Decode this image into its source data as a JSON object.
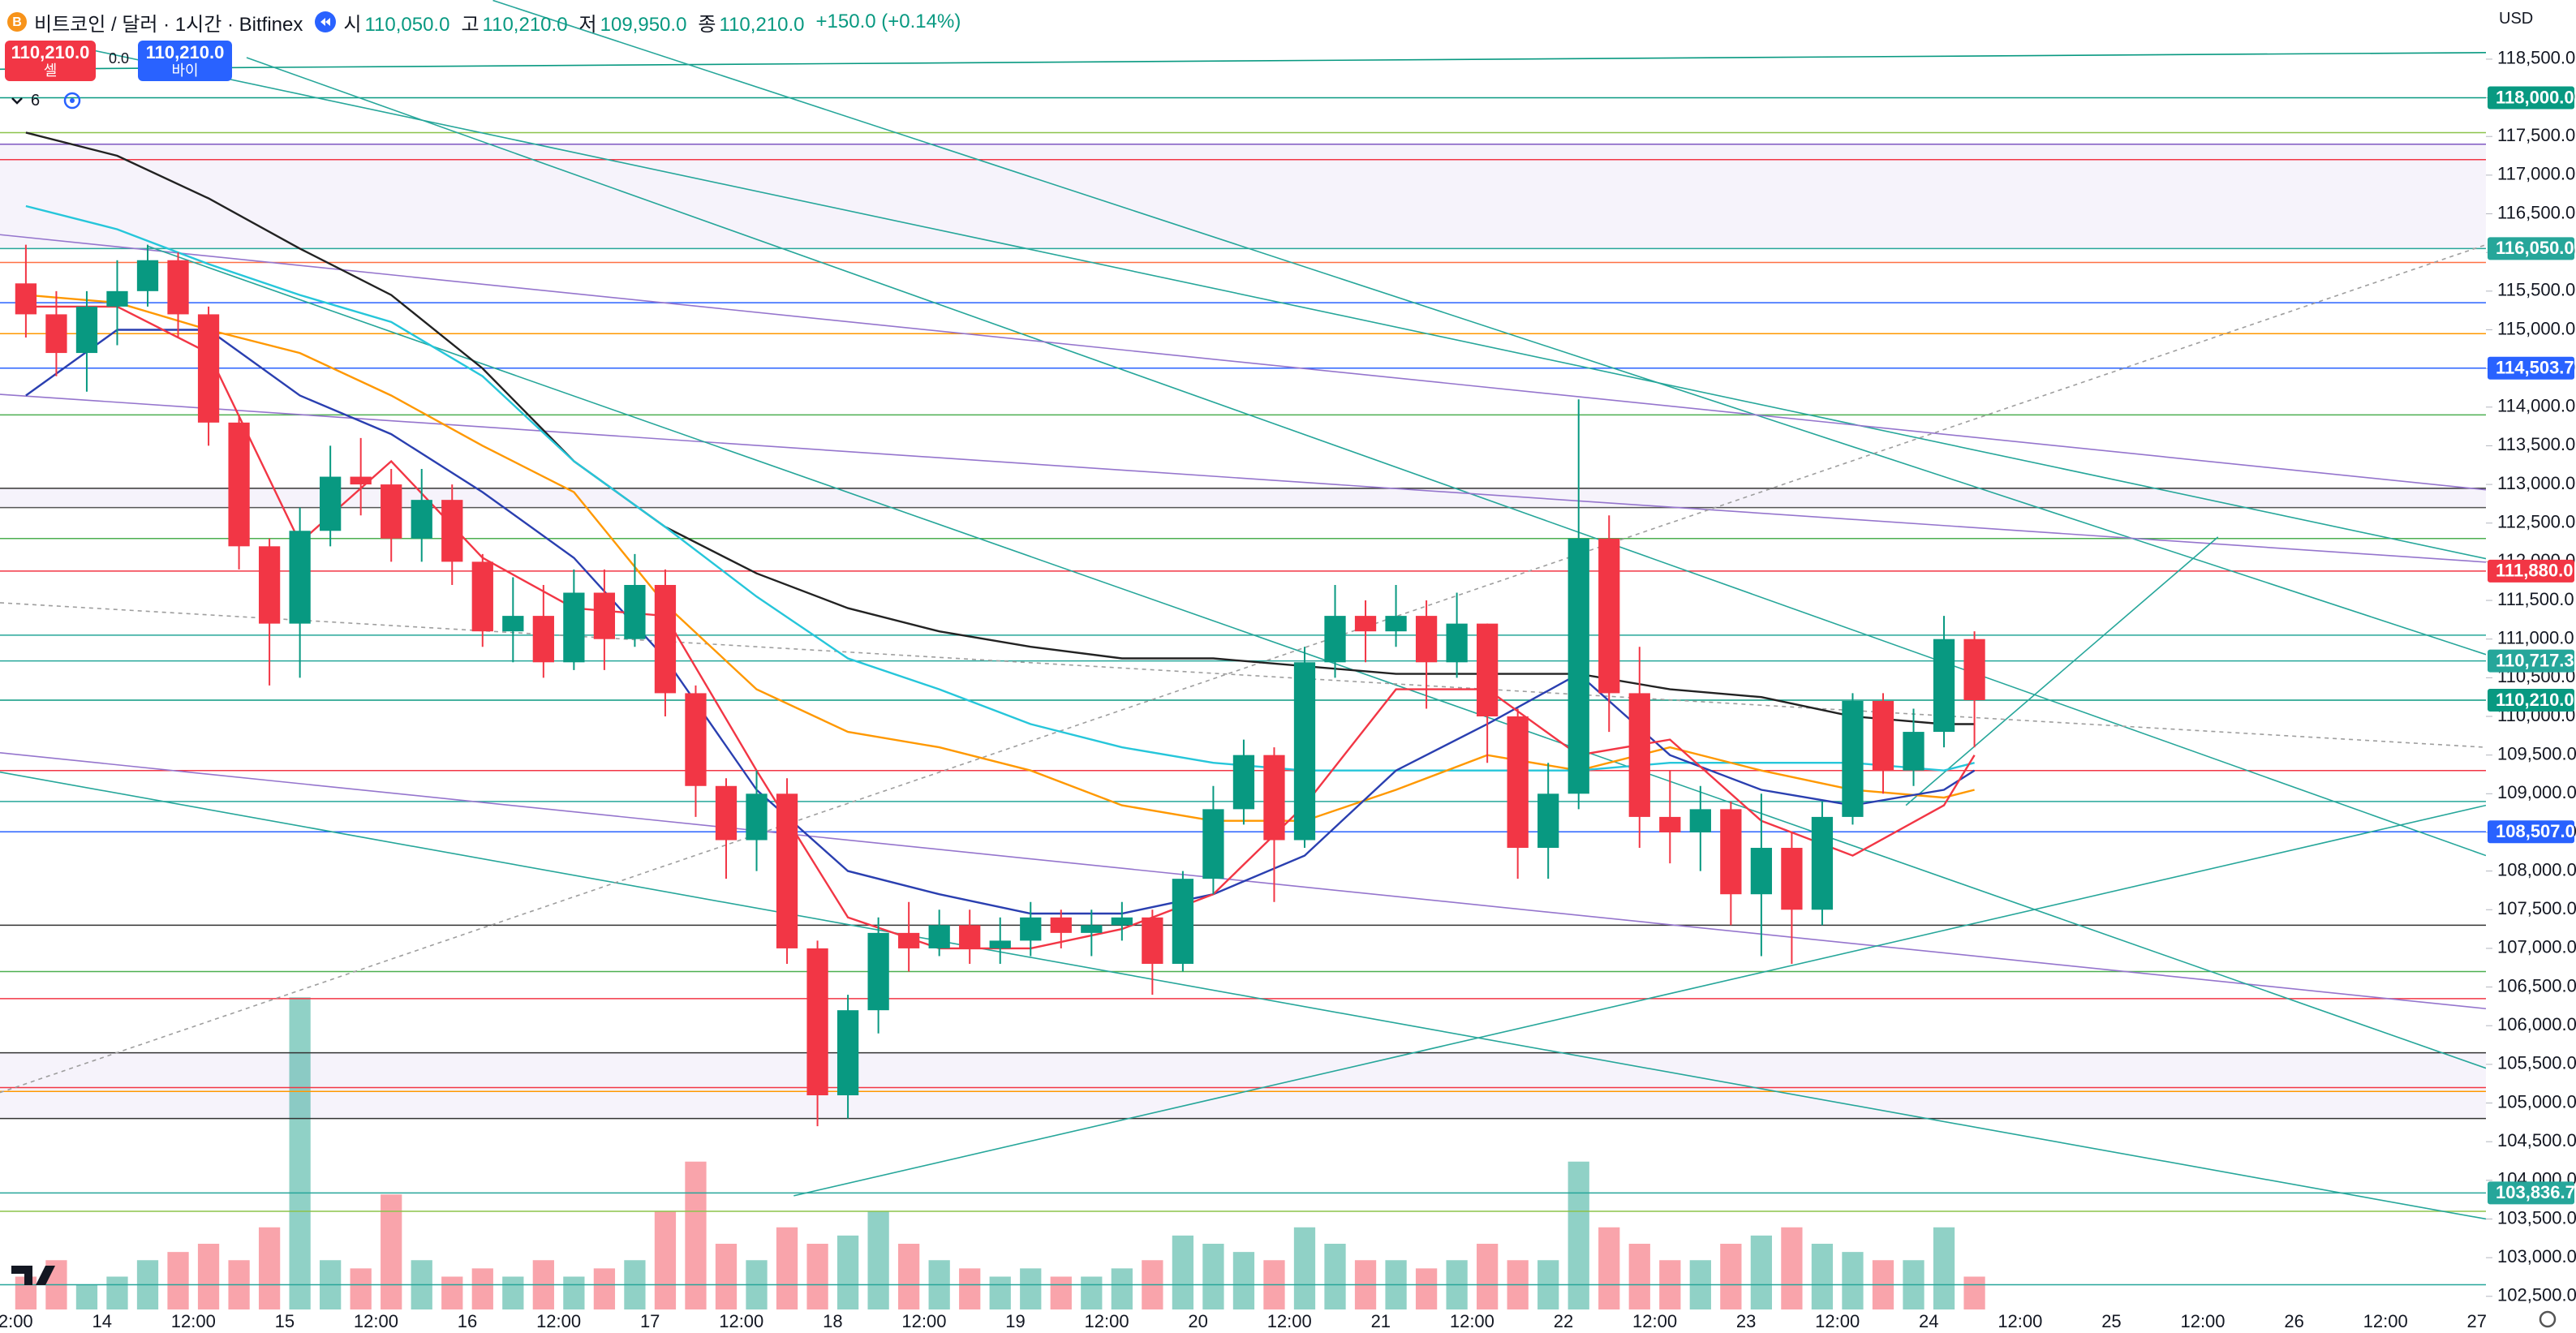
{
  "header": {
    "symbol": "비트코인 / 달러 · 1시간 · Bitfinex",
    "ohlc": [
      {
        "label": "시",
        "value": "110,050.0"
      },
      {
        "label": "고",
        "value": "110,210.0"
      },
      {
        "label": "저",
        "value": "109,950.0"
      },
      {
        "label": "종",
        "value": "110,210.0"
      }
    ],
    "change": "+150.0 (+0.14%)",
    "sell": {
      "price": "110,210.0",
      "label": "셀"
    },
    "spread": "0.0",
    "buy": {
      "price": "110,210.0",
      "label": "바이"
    },
    "indicators": "6",
    "currency": "USD"
  },
  "chart_data": {
    "type": "candlestick",
    "xlim": [
      -0.35,
      81.3
    ],
    "ylim": [
      102330,
      119265
    ],
    "xticks": [
      {
        "value": 0,
        "label": "12:00"
      },
      {
        "value": 3,
        "label": "14"
      },
      {
        "value": 6,
        "label": "12:00"
      },
      {
        "value": 9,
        "label": "15"
      },
      {
        "value": 12,
        "label": "12:00"
      },
      {
        "value": 15,
        "label": "16"
      },
      {
        "value": 18,
        "label": "12:00"
      },
      {
        "value": 21,
        "label": "17"
      },
      {
        "value": 24,
        "label": "12:00"
      },
      {
        "value": 27,
        "label": "18"
      },
      {
        "value": 30,
        "label": "12:00"
      },
      {
        "value": 33,
        "label": "19"
      },
      {
        "value": 36,
        "label": "12:00"
      },
      {
        "value": 39,
        "label": "20"
      },
      {
        "value": 42,
        "label": "12:00"
      },
      {
        "value": 45,
        "label": "21"
      },
      {
        "value": 48,
        "label": "12:00"
      },
      {
        "value": 51,
        "label": "22"
      },
      {
        "value": 54,
        "label": "12:00"
      },
      {
        "value": 57,
        "label": "23"
      },
      {
        "value": 60,
        "label": "12:00"
      },
      {
        "value": 63,
        "label": "24"
      },
      {
        "value": 66,
        "label": "12:00"
      },
      {
        "value": 69,
        "label": "25"
      },
      {
        "value": 72,
        "label": "12:00"
      },
      {
        "value": 75,
        "label": "26"
      },
      {
        "value": 78,
        "label": "12:00"
      },
      {
        "value": 81,
        "label": "27"
      }
    ],
    "yticks": [
      {
        "value": 102500,
        "label": "102,500.0"
      },
      {
        "value": 103000,
        "label": "103,000.0"
      },
      {
        "value": 103500,
        "label": "103,500.0"
      },
      {
        "value": 104000,
        "label": "104,000.0"
      },
      {
        "value": 104500,
        "label": "104,500.0"
      },
      {
        "value": 105000,
        "label": "105,000.0"
      },
      {
        "value": 105500,
        "label": "105,500.0"
      },
      {
        "value": 106000,
        "label": "106,000.0"
      },
      {
        "value": 106500,
        "label": "106,500.0"
      },
      {
        "value": 107000,
        "label": "107,000.0"
      },
      {
        "value": 107500,
        "label": "107,500.0"
      },
      {
        "value": 108000,
        "label": "108,000.0"
      },
      {
        "value": 108500,
        "label": "108,500.0"
      },
      {
        "value": 109000,
        "label": "109,000.0"
      },
      {
        "value": 109500,
        "label": "109,500.0"
      },
      {
        "value": 110000,
        "label": "110,000.0"
      },
      {
        "value": 110500,
        "label": "110,500.0"
      },
      {
        "value": 111000,
        "label": "111,000.0"
      },
      {
        "value": 111500,
        "label": "111,500.0"
      },
      {
        "value": 112000,
        "label": "112,000.0"
      },
      {
        "value": 112500,
        "label": "112,500.0"
      },
      {
        "value": 113000,
        "label": "113,000.0"
      },
      {
        "value": 113500,
        "label": "113,500.0"
      },
      {
        "value": 114000,
        "label": "114,000.0"
      },
      {
        "value": 114500,
        "label": "114,500.0"
      },
      {
        "value": 115000,
        "label": "115,000.0"
      },
      {
        "value": 115500,
        "label": "115,500.0"
      },
      {
        "value": 116000,
        "label": "116,000.0"
      },
      {
        "value": 116500,
        "label": "116,500.0"
      },
      {
        "value": 117000,
        "label": "117,000.0"
      },
      {
        "value": 117500,
        "label": "117,500.0"
      },
      {
        "value": 118000,
        "label": "118,000.0"
      },
      {
        "value": 118500,
        "label": "118,500.0"
      }
    ],
    "up_color": "#089981",
    "down_color": "#f23645",
    "candles": {
      "open": [
        115600,
        115200,
        114700,
        115300,
        115500,
        115900,
        115200,
        113800,
        112200,
        111200,
        112400,
        113100,
        113000,
        112300,
        112800,
        112000,
        111100,
        111300,
        110700,
        111600,
        111000,
        111700,
        110300,
        109100,
        108400,
        109000,
        107000,
        105100,
        106200,
        107200,
        107000,
        107300,
        107000,
        107100,
        107400,
        107200,
        107300,
        107400,
        106800,
        107900,
        108800,
        109500,
        108400,
        110700,
        111300,
        111100,
        111300,
        110700,
        111200,
        110000,
        108300,
        109000,
        112300,
        110300,
        108700,
        108500,
        108800,
        107700,
        108300,
        107500,
        108700,
        110200,
        109300,
        109800,
        111000
      ],
      "high": [
        116100,
        115500,
        115500,
        115900,
        116100,
        116000,
        115300,
        113900,
        112300,
        112700,
        113500,
        113600,
        113200,
        113200,
        113000,
        112100,
        111800,
        111700,
        111900,
        111900,
        112100,
        111900,
        110400,
        109200,
        109300,
        109200,
        107100,
        106400,
        107400,
        107600,
        107500,
        107500,
        107400,
        107600,
        107500,
        107500,
        107600,
        107500,
        108000,
        109100,
        109700,
        109600,
        110900,
        111700,
        111500,
        111700,
        111500,
        111600,
        111200,
        110100,
        109400,
        114100,
        112600,
        110900,
        109300,
        109100,
        108900,
        109000,
        108500,
        108900,
        110300,
        110300,
        110100,
        111300,
        111100
      ],
      "low": [
        114900,
        114400,
        114200,
        114800,
        115300,
        114900,
        113500,
        111900,
        110400,
        110500,
        112200,
        112600,
        112000,
        112000,
        111700,
        110900,
        110700,
        110500,
        110600,
        110600,
        110900,
        110000,
        108700,
        107900,
        108000,
        106800,
        104700,
        104800,
        105900,
        106700,
        106900,
        106800,
        106800,
        106900,
        107000,
        106900,
        107100,
        106400,
        106700,
        107700,
        108600,
        107600,
        108300,
        110500,
        110700,
        110900,
        110100,
        110500,
        109400,
        107900,
        107900,
        108800,
        109800,
        108300,
        108100,
        108000,
        107300,
        106900,
        106800,
        107300,
        108600,
        109000,
        109100,
        109600,
        109600
      ],
      "close": [
        115200,
        114700,
        115300,
        115500,
        115900,
        115200,
        113800,
        112200,
        111200,
        112400,
        113100,
        113000,
        112300,
        112800,
        112000,
        111100,
        111300,
        110700,
        111600,
        111000,
        111700,
        110300,
        109100,
        108400,
        109000,
        107000,
        105100,
        106200,
        107200,
        107000,
        107300,
        107000,
        107100,
        107400,
        107200,
        107300,
        107400,
        106800,
        107900,
        108800,
        109500,
        108400,
        110700,
        111300,
        111100,
        111300,
        110700,
        111200,
        110000,
        108300,
        109000,
        112300,
        110300,
        108700,
        108500,
        108800,
        107700,
        108300,
        107500,
        108700,
        110200,
        109300,
        109800,
        111000,
        110210
      ],
      "volume": [
        20,
        30,
        15,
        20,
        30,
        35,
        40,
        30,
        50,
        190,
        30,
        25,
        70,
        30,
        20,
        25,
        20,
        30,
        20,
        25,
        30,
        60,
        90,
        40,
        30,
        50,
        40,
        45,
        60,
        40,
        30,
        25,
        20,
        25,
        20,
        20,
        25,
        30,
        45,
        40,
        35,
        30,
        50,
        40,
        30,
        30,
        25,
        30,
        40,
        30,
        30,
        90,
        50,
        40,
        30,
        30,
        40,
        45,
        50,
        40,
        35,
        30,
        30,
        50,
        20
      ]
    },
    "moving_averages": [
      {
        "color": "#222222",
        "x": [
          0,
          3,
          6,
          9,
          12,
          15,
          18,
          21,
          24,
          27,
          30,
          33,
          36,
          39,
          42,
          45,
          48,
          51,
          54,
          57,
          60,
          63,
          64
        ],
        "values": [
          117550,
          117250,
          116700,
          116050,
          115450,
          114500,
          113300,
          112450,
          111850,
          111400,
          111100,
          110900,
          110750,
          110750,
          110650,
          110550,
          110550,
          110550,
          110350,
          110250,
          110000,
          109900,
          109900
        ]
      },
      {
        "color": "#26c6da",
        "x": [
          0,
          3,
          6,
          9,
          12,
          15,
          18,
          21,
          24,
          27,
          30,
          33,
          36,
          39,
          42,
          45,
          48,
          51,
          54,
          57,
          60,
          63,
          64
        ],
        "values": [
          116600,
          116300,
          115850,
          115450,
          115100,
          114400,
          113300,
          112450,
          111550,
          110750,
          110350,
          109900,
          109600,
          109400,
          109300,
          109300,
          109300,
          109300,
          109400,
          109400,
          109400,
          109300,
          109400
        ]
      },
      {
        "color": "#ff9800",
        "x": [
          0,
          3,
          6,
          9,
          12,
          15,
          18,
          21,
          24,
          27,
          30,
          33,
          36,
          39,
          42,
          45,
          48,
          51,
          54,
          57,
          60,
          63,
          64
        ],
        "values": [
          115450,
          115350,
          115000,
          114700,
          114150,
          113500,
          112900,
          111450,
          110350,
          109800,
          109600,
          109300,
          108850,
          108650,
          108650,
          109050,
          109500,
          109300,
          109600,
          109300,
          109050,
          108950,
          109050
        ]
      },
      {
        "color": "#2a3fb0",
        "x": [
          0,
          3,
          6,
          9,
          12,
          15,
          18,
          21,
          24,
          27,
          30,
          33,
          36,
          39,
          42,
          45,
          48,
          51,
          54,
          57,
          60,
          63,
          64
        ],
        "values": [
          114150,
          115000,
          115000,
          114150,
          113650,
          112900,
          112050,
          110750,
          109050,
          108000,
          107700,
          107450,
          107450,
          107700,
          108200,
          109300,
          109900,
          110550,
          109500,
          109050,
          108850,
          109050,
          109300
        ]
      },
      {
        "color": "#f23645",
        "x": [
          0,
          3,
          6,
          9,
          12,
          15,
          18,
          21,
          24,
          27,
          30,
          33,
          36,
          39,
          42,
          45,
          48,
          51,
          54,
          57,
          60,
          63,
          64
        ],
        "values": [
          115300,
          115300,
          114700,
          112250,
          113300,
          112050,
          111400,
          111300,
          109300,
          107400,
          107000,
          107000,
          107250,
          107700,
          108850,
          110350,
          110350,
          109500,
          109700,
          108650,
          108200,
          108850,
          109500
        ]
      }
    ],
    "bands": [
      {
        "from": 116050,
        "to": 117400,
        "color": "#7e57c2"
      },
      {
        "from": 112700,
        "to": 112950,
        "color": "#7e57c2"
      },
      {
        "from": 104800,
        "to": 105650,
        "color": "#7e57c2"
      }
    ],
    "levels": [
      {
        "value": 117550,
        "color": "#8bc34a"
      },
      {
        "value": 117400,
        "color": "#7e57c2"
      },
      {
        "value": 117200,
        "color": "#f23645"
      },
      {
        "value": 115870,
        "color": "#ff7043"
      },
      {
        "value": 115350,
        "color": "#2962ff"
      },
      {
        "value": 114950,
        "color": "#ff9800"
      },
      {
        "value": 113900,
        "color": "#4caf50"
      },
      {
        "value": 112950,
        "color": "#333333"
      },
      {
        "value": 112700,
        "color": "#555555"
      },
      {
        "value": 112300,
        "color": "#4caf50"
      },
      {
        "value": 111050,
        "color": "#26a69a"
      },
      {
        "value": 109300,
        "color": "#f23645"
      },
      {
        "value": 108900,
        "color": "#26a69a"
      },
      {
        "value": 107300,
        "color": "#333333"
      },
      {
        "value": 106700,
        "color": "#4caf50"
      },
      {
        "value": 106350,
        "color": "#f23645"
      },
      {
        "value": 105650,
        "color": "#333333"
      },
      {
        "value": 105200,
        "color": "#f23645"
      },
      {
        "value": 105150,
        "color": "#ff9800"
      },
      {
        "value": 104800,
        "color": "#333333"
      },
      {
        "value": 103600,
        "color": "#8bc34a"
      },
      {
        "value": 102650,
        "color": "#26a69a"
      },
      {
        "value": 118000,
        "label": "118,000.0",
        "color": "#089981"
      },
      {
        "value": 116050,
        "label": "116,050.0",
        "color": "#26a69a"
      },
      {
        "value": 114503.7,
        "label": "114,503.7",
        "color": "#2962ff"
      },
      {
        "value": 111880,
        "label": "111,880.0",
        "color": "#f23645"
      },
      {
        "value": 110717.3,
        "label": "110,717.3",
        "color": "#26a69a"
      },
      {
        "value": 110210,
        "label": "110,210.0",
        "color": "#089981"
      },
      {
        "value": 108507,
        "label": "108,507.0",
        "color": "#2962ff"
      },
      {
        "value": 103836.7,
        "label": "103,836.7",
        "color": "#26a69a"
      }
    ],
    "trendlines": [
      {
        "color": "#089981",
        "x": [
          -0.35,
          81.3
        ],
        "values": [
          118370,
          118585
        ]
      },
      {
        "color": "#26a69a",
        "x": [
          1.81,
          81.3
        ],
        "values": [
          118690,
          112040
        ]
      },
      {
        "color": "#26a69a",
        "x": [
          7.75,
          81.3
        ],
        "values": [
          118520,
          108200
        ]
      },
      {
        "color": "#26a69a",
        "x": [
          15.84,
          81.3
        ],
        "values": [
          119260,
          110800
        ]
      },
      {
        "color": "#9575cd",
        "x": [
          -0.35,
          81.3
        ],
        "values": [
          116230,
          112930
        ]
      },
      {
        "color": "#9575cd",
        "x": [
          -0.35,
          81.3
        ],
        "values": [
          114165,
          111995
        ]
      },
      {
        "color": "#9575cd",
        "x": [
          -0.35,
          81.3
        ],
        "values": [
          109530,
          106220
        ]
      },
      {
        "color": "#26a69a",
        "x": [
          -0.35,
          81.3
        ],
        "values": [
          109280,
          103500
        ]
      },
      {
        "color": "#26a69a",
        "x": [
          4.51,
          81.3
        ],
        "values": [
          116080,
          105450
        ]
      },
      {
        "color": "#26a69a",
        "x": [
          25.72,
          81.3
        ],
        "values": [
          103800,
          108850
        ]
      },
      {
        "color": "#26a69a",
        "x": [
          62.25,
          72.5
        ],
        "values": [
          108850,
          112320
        ]
      },
      {
        "color": "#9e9e9e",
        "dashed": true,
        "x": [
          -0.35,
          81.3
        ],
        "values": [
          105135,
          116100
        ]
      },
      {
        "color": "#9e9e9e",
        "dashed": true,
        "x": [
          -0.35,
          81.3
        ],
        "values": [
          111470,
          109600
        ]
      }
    ]
  }
}
